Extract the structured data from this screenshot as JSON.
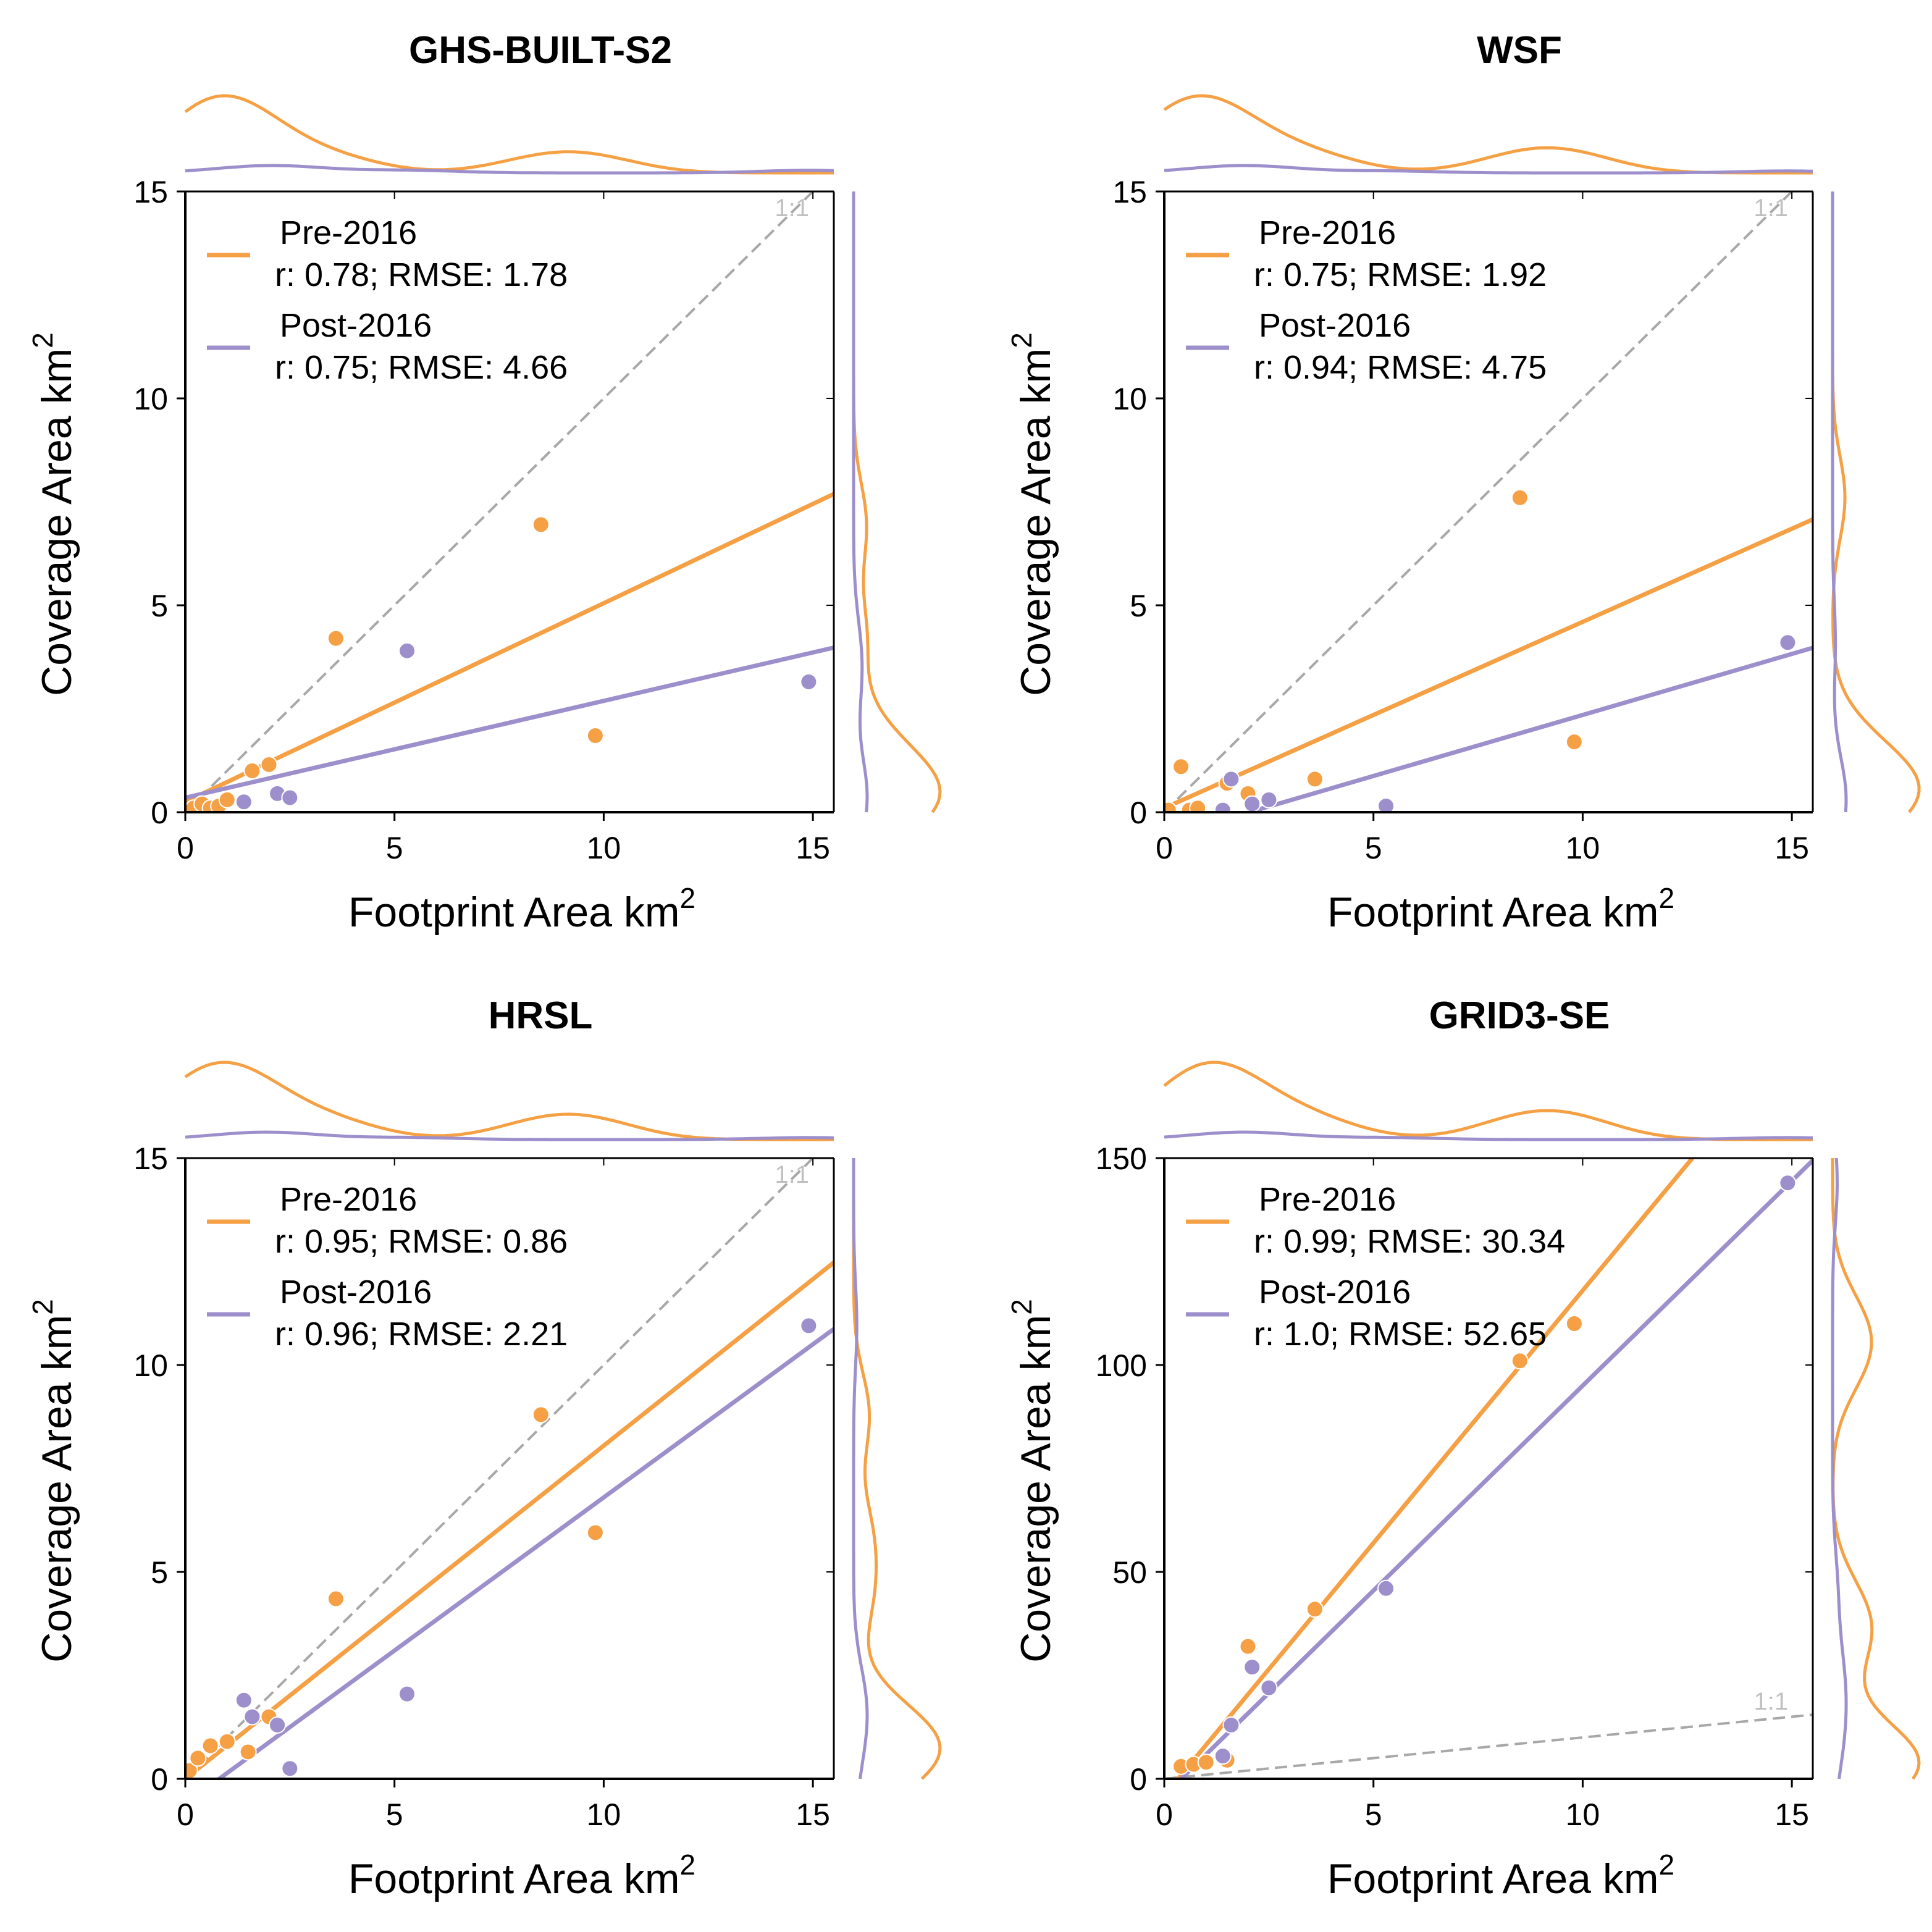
{
  "figure": {
    "colors": {
      "pre": "#f5a044",
      "post": "#9d8fcb",
      "one_to_one": "#a8a8a8",
      "axis": "#000000"
    }
  },
  "chart_data": [
    {
      "type": "scatter",
      "title": "GHS-BUILT-S2",
      "xlabel": "Footprint Area km",
      "ylabel": "Coverage Area km",
      "unit_superscript": "2",
      "xlim": [
        0,
        15.5
      ],
      "ylim": [
        0,
        15
      ],
      "xticks": [
        0,
        5,
        10,
        15
      ],
      "yticks": [
        0,
        5,
        10,
        15
      ],
      "one_to_one_label": "1:1",
      "legend_position": "top-left",
      "series": [
        {
          "name": "Pre-2016",
          "stats": " r: 0.78; RMSE: 1.78",
          "color": "#f5a044",
          "points": [
            [
              0.2,
              0.1
            ],
            [
              0.4,
              0.2
            ],
            [
              0.6,
              0.1
            ],
            [
              0.8,
              0.15
            ],
            [
              1.0,
              0.3
            ],
            [
              1.6,
              1.0
            ],
            [
              2.0,
              1.15
            ],
            [
              3.6,
              4.2
            ],
            [
              8.5,
              6.95
            ],
            [
              9.8,
              1.85
            ]
          ],
          "fit": {
            "intercept": 0.25,
            "slope": 0.48
          }
        },
        {
          "name": "Post-2016",
          "stats": "r: 0.75; RMSE: 4.66",
          "color": "#9d8fcb",
          "points": [
            [
              1.4,
              0.25
            ],
            [
              2.2,
              0.45
            ],
            [
              2.5,
              0.35
            ],
            [
              5.3,
              3.9
            ],
            [
              14.9,
              3.15
            ]
          ],
          "fit": {
            "intercept": 0.35,
            "slope": 0.234
          }
        }
      ]
    },
    {
      "type": "scatter",
      "title": "WSF",
      "xlabel": "Footprint Area km",
      "ylabel": "Coverage Area km",
      "unit_superscript": "2",
      "xlim": [
        0,
        15.5
      ],
      "ylim": [
        0,
        15
      ],
      "xticks": [
        0,
        5,
        10,
        15
      ],
      "yticks": [
        0,
        5,
        10,
        15
      ],
      "one_to_one_label": "1:1",
      "legend_position": "top-left",
      "series": [
        {
          "name": "Pre-2016",
          "stats": "r: 0.75; RMSE: 1.92",
          "color": "#f5a044",
          "points": [
            [
              0.1,
              0.05
            ],
            [
              0.4,
              1.1
            ],
            [
              0.6,
              0.05
            ],
            [
              0.8,
              0.1
            ],
            [
              1.5,
              0.7
            ],
            [
              2.0,
              0.45
            ],
            [
              3.6,
              0.8
            ],
            [
              8.5,
              7.6
            ],
            [
              9.8,
              1.7
            ]
          ],
          "fit": {
            "intercept": 0.1,
            "slope": 0.45
          }
        },
        {
          "name": "Post-2016",
          "stats": "r: 0.94; RMSE: 4.75",
          "color": "#9d8fcb",
          "points": [
            [
              1.4,
              0.05
            ],
            [
              1.6,
              0.8
            ],
            [
              2.1,
              0.2
            ],
            [
              2.5,
              0.3
            ],
            [
              5.3,
              0.15
            ],
            [
              14.9,
              4.1
            ]
          ],
          "fit": {
            "intercept": -0.6,
            "slope": 0.295
          }
        }
      ]
    },
    {
      "type": "scatter",
      "title": "HRSL",
      "xlabel": "Footprint Area km",
      "ylabel": "Coverage Area km",
      "unit_superscript": "2",
      "xlim": [
        0,
        15.5
      ],
      "ylim": [
        0,
        15
      ],
      "xticks": [
        0,
        5,
        10,
        15
      ],
      "yticks": [
        0,
        5,
        10,
        15
      ],
      "one_to_one_label": "1:1",
      "legend_position": "top-left",
      "series": [
        {
          "name": "Pre-2016",
          "stats": "r: 0.95; RMSE: 0.86",
          "color": "#f5a044",
          "points": [
            [
              0.1,
              0.2
            ],
            [
              0.3,
              0.5
            ],
            [
              0.6,
              0.8
            ],
            [
              1.0,
              0.9
            ],
            [
              1.5,
              0.65
            ],
            [
              2.0,
              1.5
            ],
            [
              3.6,
              4.35
            ],
            [
              8.5,
              8.8
            ],
            [
              9.8,
              5.95
            ]
          ],
          "fit": {
            "intercept": 0.0,
            "slope": 0.805
          }
        },
        {
          "name": "Post-2016",
          "stats": "r: 0.96; RMSE: 2.21",
          "color": "#9d8fcb",
          "points": [
            [
              1.4,
              1.9
            ],
            [
              1.6,
              1.5
            ],
            [
              2.2,
              1.3
            ],
            [
              2.5,
              0.25
            ],
            [
              5.3,
              2.05
            ],
            [
              14.9,
              10.95
            ]
          ],
          "fit": {
            "intercept": -0.6,
            "slope": 0.74
          }
        }
      ]
    },
    {
      "type": "scatter",
      "title": "GRID3-SE",
      "xlabel": "Footprint Area km",
      "ylabel": "Coverage Area km",
      "unit_superscript": "2",
      "xlim": [
        0,
        15.5
      ],
      "ylim": [
        0,
        150
      ],
      "xticks": [
        0,
        5,
        10,
        15
      ],
      "yticks": [
        0,
        50,
        100,
        150
      ],
      "one_to_one_label": "1:1",
      "legend_position": "top-left",
      "series": [
        {
          "name": "Pre-2016",
          "stats": "r: 0.99; RMSE: 30.34",
          "color": "#f5a044",
          "points": [
            [
              0.4,
              3
            ],
            [
              0.7,
              3.5
            ],
            [
              1.0,
              4
            ],
            [
              1.5,
              4.5
            ],
            [
              2.0,
              32
            ],
            [
              3.6,
              41
            ],
            [
              8.5,
              101
            ],
            [
              9.8,
              110
            ]
          ],
          "fit": {
            "intercept": -4.0,
            "slope": 12.2
          }
        },
        {
          "name": "Post-2016",
          "stats": "r: 1.0; RMSE: 52.65",
          "color": "#9d8fcb",
          "points": [
            [
              1.4,
              5.5
            ],
            [
              1.6,
              13
            ],
            [
              2.1,
              27
            ],
            [
              2.5,
              22
            ],
            [
              5.3,
              46
            ],
            [
              14.9,
              144
            ]
          ],
          "fit": {
            "intercept": -4.0,
            "slope": 9.9
          }
        }
      ]
    }
  ]
}
